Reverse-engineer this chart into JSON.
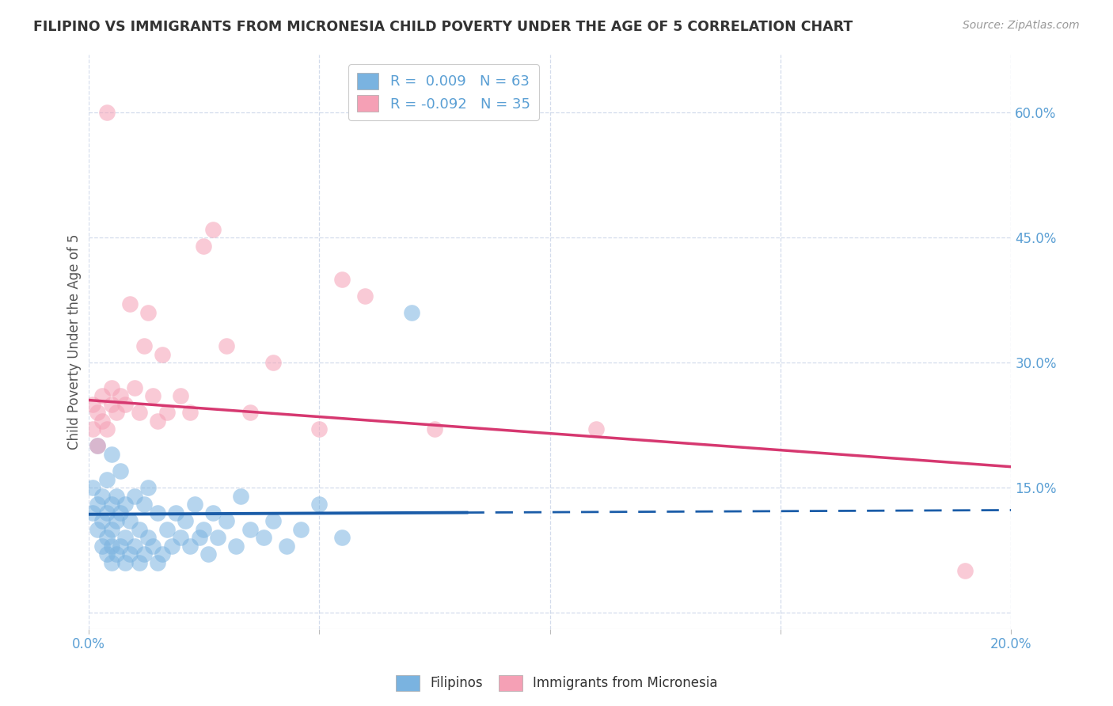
{
  "title": "FILIPINO VS IMMIGRANTS FROM MICRONESIA CHILD POVERTY UNDER THE AGE OF 5 CORRELATION CHART",
  "source": "Source: ZipAtlas.com",
  "ylabel": "Child Poverty Under the Age of 5",
  "xlim": [
    0.0,
    0.2
  ],
  "ylim": [
    -0.02,
    0.67
  ],
  "xtick_positions": [
    0.0,
    0.05,
    0.1,
    0.15,
    0.2
  ],
  "xticklabels": [
    "0.0%",
    "",
    "",
    "",
    "20.0%"
  ],
  "yticks_right": [
    0.0,
    0.15,
    0.3,
    0.45,
    0.6
  ],
  "ytick_labels_right": [
    "",
    "15.0%",
    "30.0%",
    "45.0%",
    "60.0%"
  ],
  "blue_color": "#7ab3e0",
  "pink_color": "#f5a0b5",
  "trend_blue": "#1a5ca8",
  "trend_pink": "#d63870",
  "axis_color": "#5a9fd4",
  "grid_color": "#c8d4e8",
  "background_color": "#ffffff",
  "blue_x": [
    0.001,
    0.001,
    0.002,
    0.002,
    0.002,
    0.003,
    0.003,
    0.003,
    0.004,
    0.004,
    0.004,
    0.004,
    0.005,
    0.005,
    0.005,
    0.005,
    0.005,
    0.006,
    0.006,
    0.006,
    0.007,
    0.007,
    0.007,
    0.008,
    0.008,
    0.008,
    0.009,
    0.009,
    0.01,
    0.01,
    0.011,
    0.011,
    0.012,
    0.012,
    0.013,
    0.013,
    0.014,
    0.015,
    0.015,
    0.016,
    0.017,
    0.018,
    0.019,
    0.02,
    0.021,
    0.022,
    0.023,
    0.024,
    0.025,
    0.026,
    0.027,
    0.028,
    0.03,
    0.032,
    0.033,
    0.035,
    0.038,
    0.04,
    0.043,
    0.046,
    0.05,
    0.055,
    0.07
  ],
  "blue_y": [
    0.12,
    0.15,
    0.1,
    0.13,
    0.2,
    0.08,
    0.11,
    0.14,
    0.07,
    0.09,
    0.12,
    0.16,
    0.06,
    0.08,
    0.1,
    0.13,
    0.19,
    0.07,
    0.11,
    0.14,
    0.08,
    0.12,
    0.17,
    0.06,
    0.09,
    0.13,
    0.07,
    0.11,
    0.08,
    0.14,
    0.06,
    0.1,
    0.07,
    0.13,
    0.09,
    0.15,
    0.08,
    0.06,
    0.12,
    0.07,
    0.1,
    0.08,
    0.12,
    0.09,
    0.11,
    0.08,
    0.13,
    0.09,
    0.1,
    0.07,
    0.12,
    0.09,
    0.11,
    0.08,
    0.14,
    0.1,
    0.09,
    0.11,
    0.08,
    0.1,
    0.13,
    0.09,
    0.36
  ],
  "pink_x": [
    0.001,
    0.001,
    0.002,
    0.002,
    0.003,
    0.003,
    0.004,
    0.004,
    0.005,
    0.005,
    0.006,
    0.007,
    0.008,
    0.009,
    0.01,
    0.011,
    0.012,
    0.013,
    0.014,
    0.015,
    0.016,
    0.017,
    0.02,
    0.022,
    0.025,
    0.027,
    0.03,
    0.035,
    0.04,
    0.05,
    0.055,
    0.06,
    0.075,
    0.11,
    0.19
  ],
  "pink_y": [
    0.22,
    0.25,
    0.2,
    0.24,
    0.23,
    0.26,
    0.22,
    0.6,
    0.25,
    0.27,
    0.24,
    0.26,
    0.25,
    0.37,
    0.27,
    0.24,
    0.32,
    0.36,
    0.26,
    0.23,
    0.31,
    0.24,
    0.26,
    0.24,
    0.44,
    0.46,
    0.32,
    0.24,
    0.3,
    0.22,
    0.4,
    0.38,
    0.22,
    0.22,
    0.05
  ],
  "blue_trend_x0": 0.0,
  "blue_trend_x_solid_end": 0.082,
  "blue_trend_x1": 0.2,
  "blue_trend_y0": 0.118,
  "blue_trend_y1": 0.123,
  "pink_trend_x0": 0.0,
  "pink_trend_x1": 0.2,
  "pink_trend_y0": 0.255,
  "pink_trend_y1": 0.175
}
